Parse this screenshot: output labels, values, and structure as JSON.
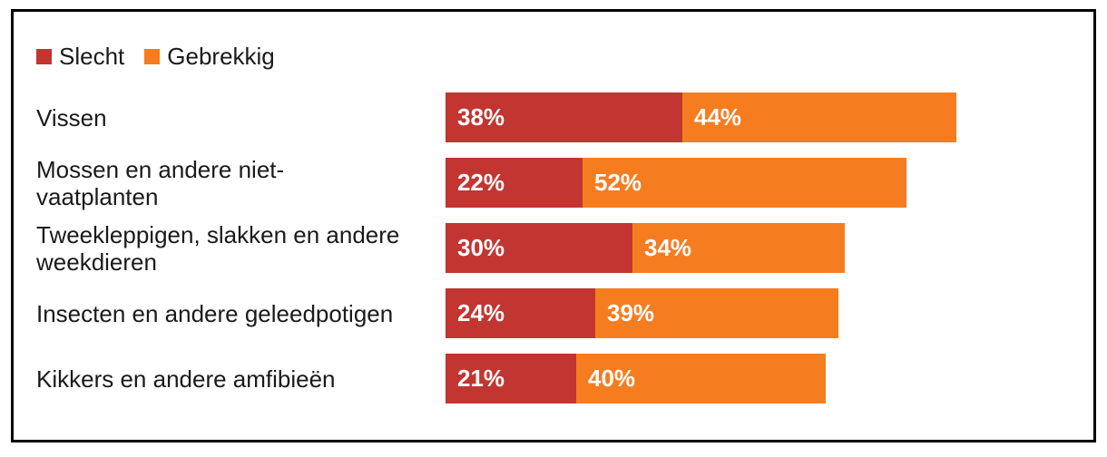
{
  "legend": {
    "items": [
      {
        "label": "Slecht",
        "color": "#c23531"
      },
      {
        "label": "Gebrekkig",
        "color": "#f57d20"
      }
    ]
  },
  "chart_data": {
    "type": "bar",
    "orientation": "horizontal",
    "stacked": true,
    "categories": [
      "Vissen",
      "Mossen en andere niet-vaatplanten",
      "Tweekleppigen, slakken en andere weekdieren",
      "Insecten en andere geleedpotigen",
      "Kikkers en andere amfibieën"
    ],
    "categories_display": [
      "Vissen",
      "Mossen en andere niet-\nvaatplanten",
      "Tweekleppigen, slakken en andere\nweekdieren",
      "Insecten en andere geleedpotigen",
      "Kikkers en andere amfibieën"
    ],
    "series": [
      {
        "name": "Slecht",
        "color": "#c23531",
        "values": [
          38,
          22,
          30,
          24,
          21
        ]
      },
      {
        "name": "Gebrekkig",
        "color": "#f57d20",
        "values": [
          44,
          52,
          34,
          39,
          40
        ]
      }
    ],
    "value_unit": "%",
    "data_labels": true,
    "xlim": [
      0,
      100
    ],
    "grid": false,
    "legend_position": "top-left",
    "title": "",
    "xlabel": "",
    "ylabel": ""
  }
}
